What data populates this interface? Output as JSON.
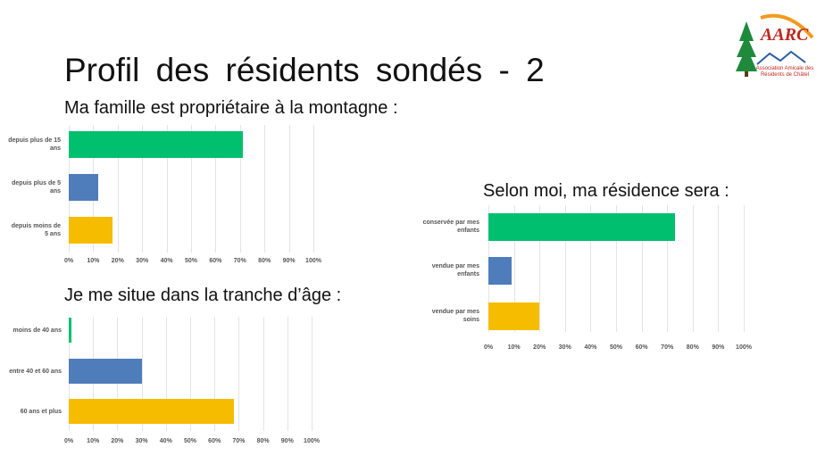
{
  "title": "Profil des résidents sondés - 2",
  "logo": {
    "name": "AARC",
    "lines": [
      "Association Amicale des",
      "Résidents de Châtel"
    ]
  },
  "chart_data": [
    {
      "type": "bar",
      "orientation": "horizontal",
      "title": "Ma famille est propriétaire à la montagne :",
      "categories": [
        "depuis plus de 15 ans",
        "depuis plus de 5 ans",
        "depuis moins de 5 ans"
      ],
      "values": [
        71,
        12,
        18
      ],
      "colors": [
        "#00bf6f",
        "#4f7cba",
        "#f6bc00"
      ],
      "xlim": [
        0,
        100
      ],
      "grid": true,
      "xticks": [
        {
          "value": 0,
          "label": "0%"
        },
        {
          "value": 10,
          "label": "10%"
        },
        {
          "value": 20,
          "label": "20%"
        },
        {
          "value": 30,
          "label": "30%"
        },
        {
          "value": 40,
          "label": "40%"
        },
        {
          "value": 50,
          "label": "50%"
        },
        {
          "value": 60,
          "label": "60%"
        },
        {
          "value": 70,
          "label": "70%"
        },
        {
          "value": 80,
          "label": "80%"
        },
        {
          "value": 90,
          "label": "90%"
        },
        {
          "value": 100,
          "label": "100%"
        }
      ]
    },
    {
      "type": "bar",
      "orientation": "horizontal",
      "title": "Selon moi, ma résidence sera :",
      "categories": [
        "conservée par mes enfants",
        "vendue par mes enfants",
        "vendue par mes soins"
      ],
      "values": [
        73,
        9,
        20
      ],
      "colors": [
        "#00bf6f",
        "#4f7cba",
        "#f6bc00"
      ],
      "xlim": [
        0,
        100
      ],
      "grid": true,
      "xticks": [
        {
          "value": 0,
          "label": "0%"
        },
        {
          "value": 10,
          "label": "10%"
        },
        {
          "value": 20,
          "label": "20%"
        },
        {
          "value": 30,
          "label": "30%"
        },
        {
          "value": 40,
          "label": "40%"
        },
        {
          "value": 50,
          "label": "50%"
        },
        {
          "value": 60,
          "label": "60%"
        },
        {
          "value": 70,
          "label": "70%"
        },
        {
          "value": 80,
          "label": "80%"
        },
        {
          "value": 90,
          "label": "90%"
        },
        {
          "value": 100,
          "label": "100%"
        }
      ]
    },
    {
      "type": "bar",
      "orientation": "horizontal",
      "title": "Je me situe dans la tranche d’âge :",
      "categories": [
        "moins de 40 ans",
        "entre 40 et 60 ans",
        "60 ans et plus"
      ],
      "values": [
        1,
        30,
        68
      ],
      "colors": [
        "#00bf6f",
        "#4f7cba",
        "#f6bc00"
      ],
      "xlim": [
        0,
        100
      ],
      "grid": true,
      "xticks": [
        {
          "value": 0,
          "label": "0%"
        },
        {
          "value": 10,
          "label": "10%"
        },
        {
          "value": 20,
          "label": "20%"
        },
        {
          "value": 30,
          "label": "30%"
        },
        {
          "value": 40,
          "label": "40%"
        },
        {
          "value": 50,
          "label": "50%"
        },
        {
          "value": 60,
          "label": "60%"
        },
        {
          "value": 70,
          "label": "70%"
        },
        {
          "value": 80,
          "label": "80%"
        },
        {
          "value": 90,
          "label": "90%"
        },
        {
          "value": 100,
          "label": "100%"
        }
      ]
    }
  ]
}
